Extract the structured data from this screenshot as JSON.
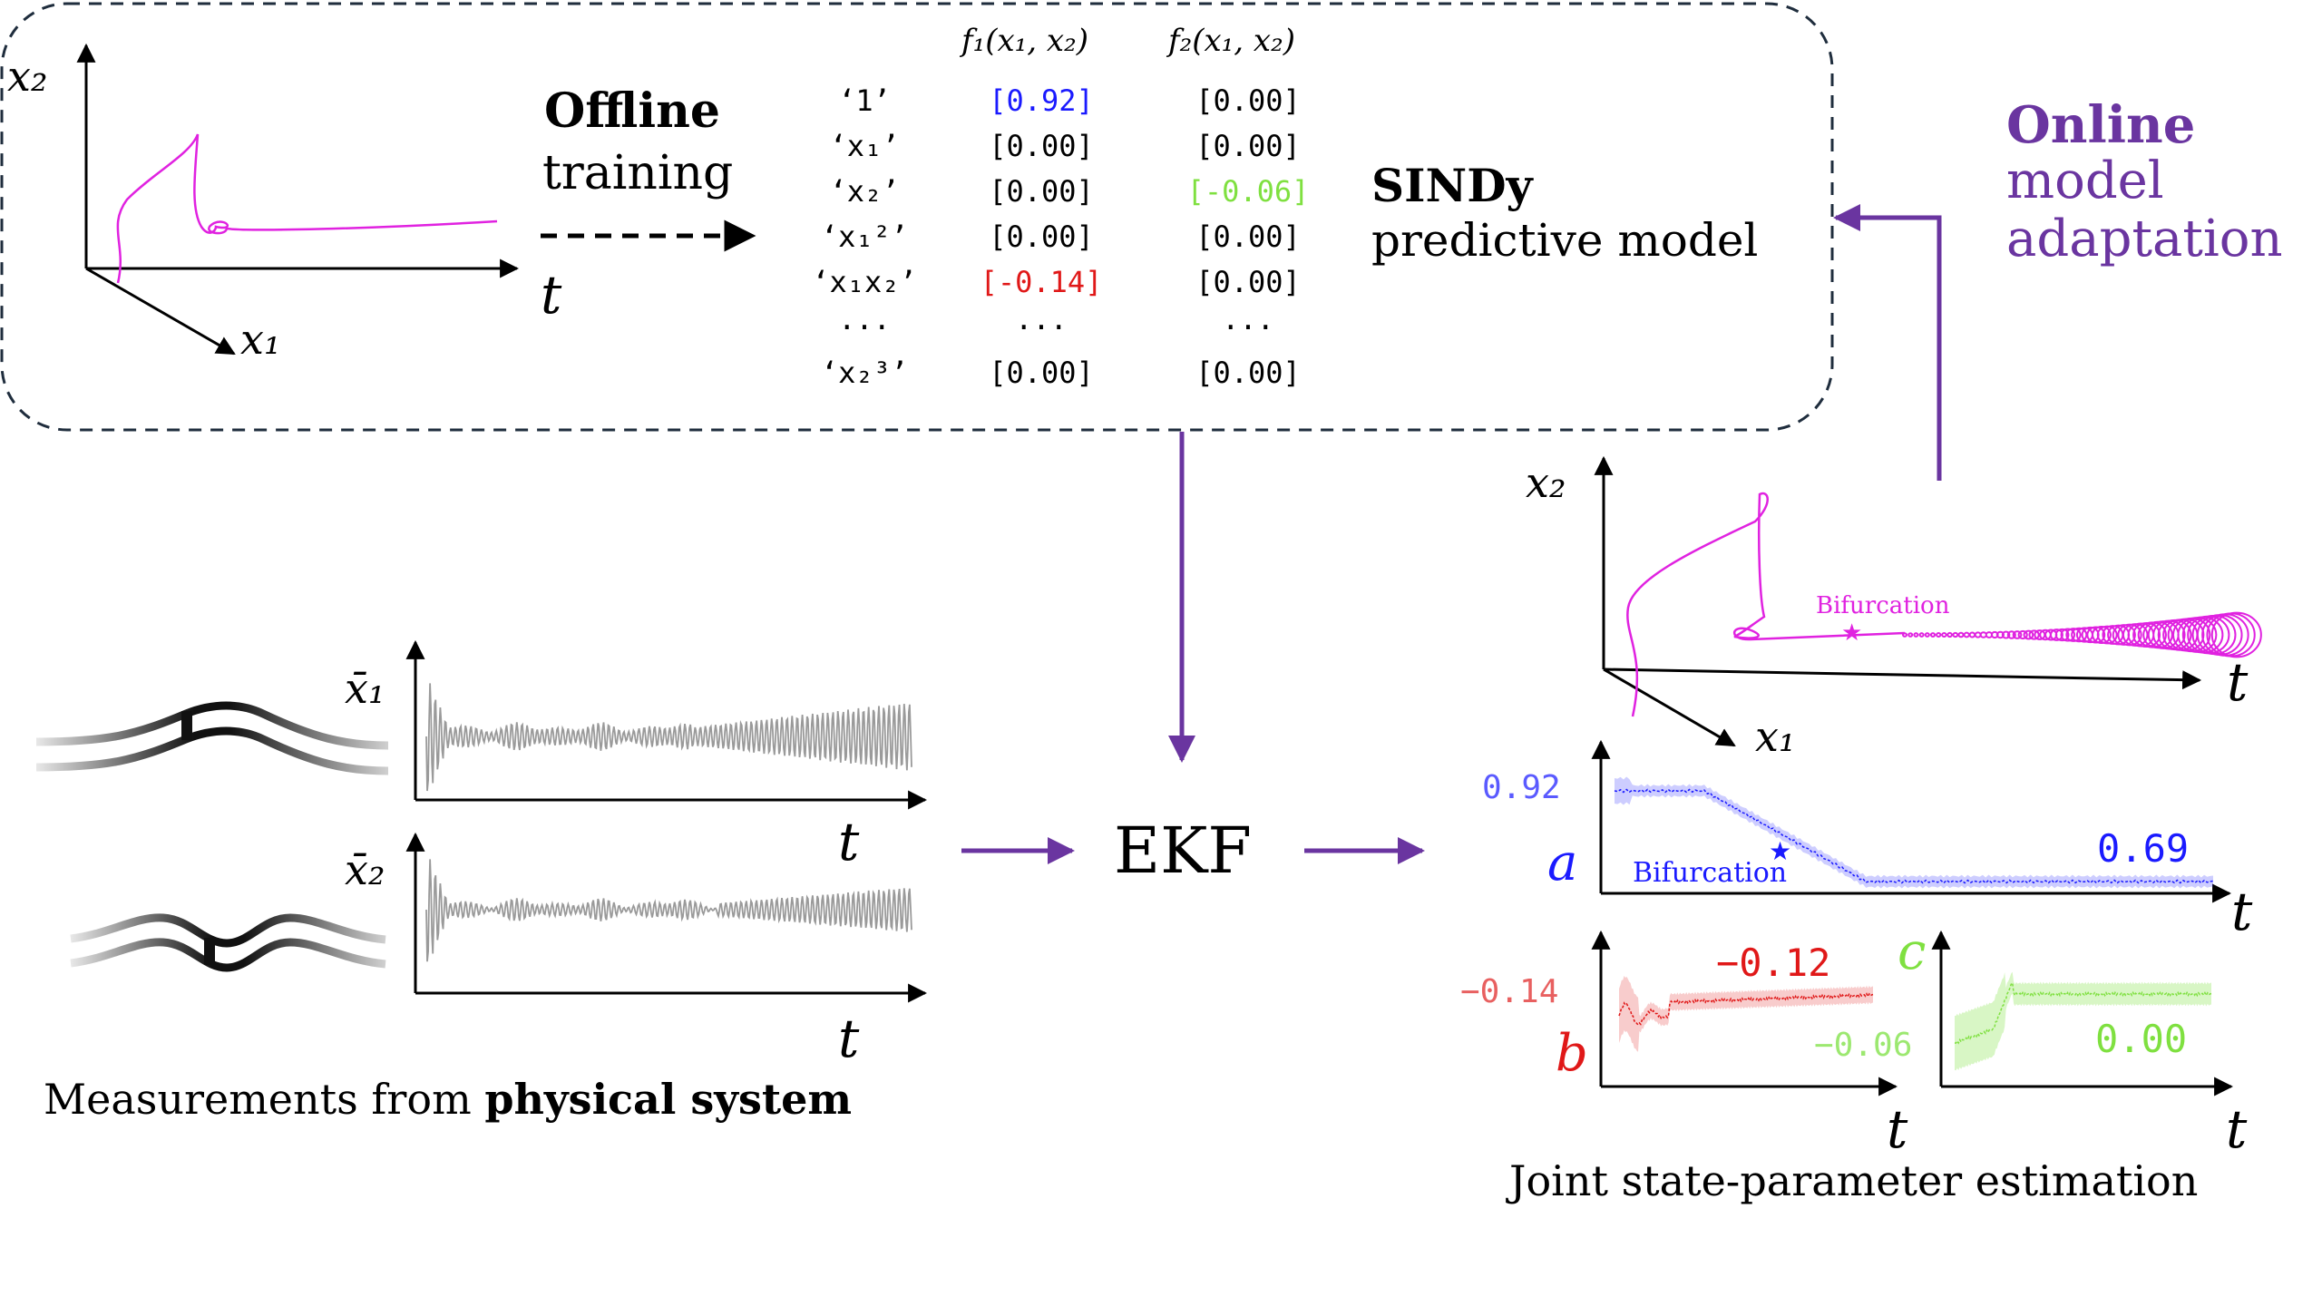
{
  "colors": {
    "axis": "#000000",
    "dash_box": "#1f2d3d",
    "trajectory": "#e022e0",
    "purple_arrow": "#6a35a0",
    "online_text": "#6a35a0",
    "blue": "#1a1aff",
    "red": "#e01818",
    "green": "#7fe040",
    "gray_signal": "#9a9a9a"
  },
  "offline": {
    "title_bold": "Offline",
    "title_rest": "training",
    "phase_axes": {
      "x2": "x₂",
      "x1": "x₁",
      "t": "t"
    }
  },
  "table": {
    "headers": [
      "f₁(x₁, x₂)",
      "f₂(x₁, x₂)"
    ],
    "rows": [
      {
        "term": "‘1’",
        "f1": "[0.92]",
        "f2": "[0.00]",
        "f1_color": "blue",
        "f2_color": "black"
      },
      {
        "term": "‘x₁’",
        "f1": "[0.00]",
        "f2": "[0.00]",
        "f1_color": "black",
        "f2_color": "black"
      },
      {
        "term": "‘x₂’",
        "f1": "[0.00]",
        "f2": "[-0.06]",
        "f1_color": "black",
        "f2_color": "green"
      },
      {
        "term": "‘x₁²’",
        "f1": "[0.00]",
        "f2": "[0.00]",
        "f1_color": "black",
        "f2_color": "black"
      },
      {
        "term": "‘x₁x₂’",
        "f1": "[-0.14]",
        "f2": "[0.00]",
        "f1_color": "red",
        "f2_color": "black"
      },
      {
        "term": "···",
        "f1": "···",
        "f2": "···",
        "f1_color": "black",
        "f2_color": "black"
      },
      {
        "term": "‘x₂³’",
        "f1": "[0.00]",
        "f2": "[0.00]",
        "f1_color": "black",
        "f2_color": "black"
      }
    ]
  },
  "sindy": {
    "title": "SINDy",
    "subtitle": "predictive model"
  },
  "online": {
    "line1": "Online",
    "line2": "model",
    "line3": "adaptation"
  },
  "online_phase": {
    "x2": "x₂",
    "x1": "x₁",
    "t": "t",
    "bifurcation": "Bifurcation"
  },
  "measurements": {
    "x1_label": "x̄₁",
    "x2_label": "x̄₂",
    "t": "t",
    "caption_pre": "Measurements from ",
    "caption_bold": "physical system"
  },
  "ekf": {
    "label": "EKF"
  },
  "estimation": {
    "a": {
      "label": "a",
      "start": "0.92",
      "end": "0.69",
      "bifurcation": "Bifurcation"
    },
    "b": {
      "label": "b",
      "start": "−0.14",
      "end": "−0.12"
    },
    "c": {
      "label": "c",
      "start": "−0.06",
      "end": "0.00"
    },
    "t": "t",
    "caption": "Joint state-parameter estimation"
  }
}
